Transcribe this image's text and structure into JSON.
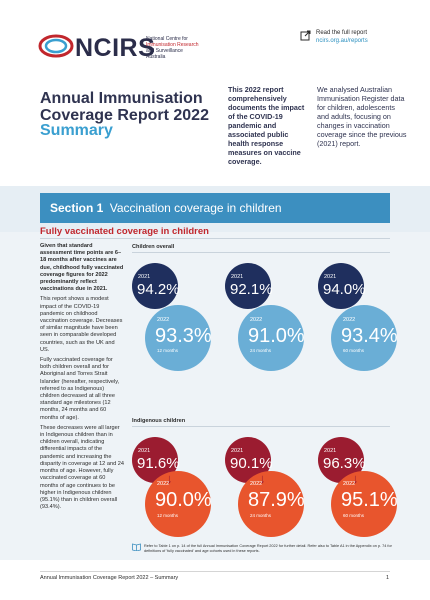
{
  "header": {
    "logo_word": "NCIRS",
    "logo_sub_line1": "National Centre for",
    "logo_sub_line2": "Immunisation Research",
    "logo_sub_line3": "and Surveillance",
    "logo_sub_line4": "Australia",
    "read_label": "Read the full report",
    "read_url": "ncirs.org.au/reports"
  },
  "title": "Annual Immunisation Coverage Report 2022",
  "subtitle": "Summary",
  "intro_bold": "This 2022 report comprehensively documents the impact of the COVID-19 pandemic and associated public health response measures on vaccine coverage.",
  "intro_text": "We analysed Australian Immunisation Register data for children, adolescents and adults, focusing on changes in vaccination coverage since the previous (2021) report.",
  "section": {
    "number": "Section 1",
    "title": "Vaccination coverage in children"
  },
  "subsection_title": "Fully vaccinated coverage in children",
  "left_text": {
    "p1": "Given that standard assessment time points are 6–18 months after vaccines are due, childhood fully vaccinated coverage figures for 2022 predominantly reflect vaccinations due in 2021.",
    "p2": "This report shows a modest impact of the COVID-19 pandemic on childhood vaccination coverage. Decreases of similar magnitude have been seen in comparable developed countries, such as the UK and US.",
    "p3": "Fully vaccinated coverage for both children overall and for Aboriginal and Torres Strait Islander (hereafter, respectively, referred to as Indigenous) children decreased at all three standard age milestones (12 months, 24 months and 60 months of age).",
    "p4": "These decreases were all larger in Indigenous children than in children overall, indicating differential impacts of the pandemic and increasing the disparity in coverage at 12 and 24 months of age. However, fully vaccinated coverage at 60 months of age continues to be higher in Indigenous children (95.1%) than in children overall (93.4%)."
  },
  "groups": {
    "overall": {
      "label": "Children overall",
      "items": [
        {
          "y2021": "2021",
          "v2021": "94.2%",
          "y2022": "2022",
          "v2022": "93.3%",
          "age": "12 months"
        },
        {
          "y2021": "2021",
          "v2021": "92.1%",
          "y2022": "2022",
          "v2022": "91.0%",
          "age": "24 months"
        },
        {
          "y2021": "2021",
          "v2021": "94.0%",
          "y2022": "2022",
          "v2022": "93.4%",
          "age": "60 months"
        }
      ]
    },
    "indigenous": {
      "label": "Indigenous children",
      "items": [
        {
          "y2021": "2021",
          "v2021": "91.6%",
          "y2022": "2022",
          "v2022": "90.0%",
          "age": "12 months"
        },
        {
          "y2021": "2021",
          "v2021": "90.1%",
          "y2022": "2022",
          "v2022": "87.9%",
          "age": "24 months"
        },
        {
          "y2021": "2021",
          "v2021": "96.3%",
          "y2022": "2022",
          "v2022": "95.1%",
          "age": "60 months"
        }
      ]
    }
  },
  "colors": {
    "overall_2021": "#1f2f5e",
    "overall_2022": "#6aaed6",
    "indigenous_2021": "#9b1c30",
    "indigenous_2022": "#e8552d",
    "arrow": "#3c8fc0"
  },
  "footnote": "Refer to Table 1 on p. 14 of the full Annual Immunisation Coverage Report 2022 for further detail. Refer also to Table A1 in the Appendix on p. 74 for definitions of 'fully vaccinated' and age cohorts used in these reports.",
  "footer": {
    "left": "Annual Immunisation Coverage Report 2022 – Summary",
    "page": "1"
  }
}
